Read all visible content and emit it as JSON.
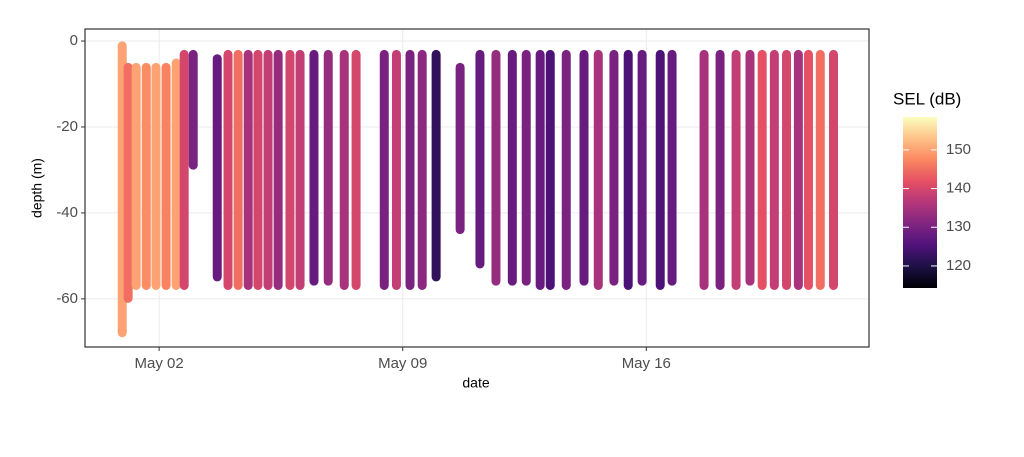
{
  "chart_data": {
    "type": "range",
    "x_label": "date",
    "y_label": "depth (m)",
    "x": [
      0.94,
      1.11,
      1.34,
      1.63,
      1.91,
      2.2,
      2.49,
      2.72,
      2.98,
      3.67,
      3.98,
      4.27,
      4.56,
      4.84,
      5.13,
      5.42,
      5.76,
      6.05,
      6.45,
      6.86,
      7.32,
      7.66,
      8.47,
      8.82,
      9.21,
      9.56,
      9.96,
      10.65,
      11.22,
      11.68,
      12.15,
      12.55,
      12.95,
      13.24,
      13.7,
      14.21,
      14.62,
      15.07,
      15.48,
      15.88,
      16.4,
      16.74,
      17.66,
      18.12,
      18.58,
      18.98,
      19.33,
      19.68,
      20.03,
      20.37,
      20.66,
      21.0,
      21.38
    ],
    "ymax": [
      -1,
      -6,
      -6,
      -6,
      -6,
      -6,
      -5,
      -3,
      -3,
      -4,
      -3,
      -3,
      -3,
      -3,
      -3,
      -3,
      -3,
      -3,
      -3,
      -3,
      -3,
      -3,
      -3,
      -3,
      -3,
      -3,
      -3,
      -6,
      -3,
      -3,
      -3,
      -3,
      -3,
      -3,
      -3,
      -3,
      -3,
      -3,
      -3,
      -3,
      -3,
      -3,
      -3,
      -3,
      -3,
      -3,
      -3,
      -3,
      -3,
      -3,
      -3,
      -3,
      -3
    ],
    "ymin": [
      -68,
      -60,
      -57,
      -57,
      -57,
      -57,
      -57,
      -57,
      -29,
      -55,
      -57,
      -57,
      -57,
      -57,
      -57,
      -57,
      -57,
      -57,
      -56,
      -56,
      -57,
      -57,
      -57,
      -57,
      -57,
      -57,
      -55,
      -44,
      -52,
      -56,
      -56,
      -56,
      -57,
      -57,
      -57,
      -56,
      -57,
      -56,
      -57,
      -56,
      -57,
      -56,
      -57,
      -57,
      -57,
      -56,
      -57,
      -57,
      -57,
      -57,
      -57,
      -57,
      -57
    ],
    "values": [
      150,
      145,
      150,
      148,
      150,
      147,
      150,
      140,
      130,
      128,
      140,
      145,
      135,
      140,
      138,
      133,
      140,
      138,
      128,
      133,
      135,
      140,
      130,
      138,
      130,
      132,
      122,
      130,
      128,
      133,
      128,
      130,
      128,
      125,
      130,
      128,
      135,
      130,
      125,
      128,
      125,
      128,
      135,
      130,
      138,
      135,
      142,
      138,
      140,
      135,
      142,
      145,
      140
    ],
    "xlim": [
      -0.13,
      22.4
    ],
    "xticks": [
      {
        "value": 2,
        "label": "May 02"
      },
      {
        "value": 9,
        "label": "May 09"
      },
      {
        "value": 16,
        "label": "May 16"
      }
    ],
    "ylim": [
      -71.2,
      2.8
    ],
    "yticks": [
      -60,
      -40,
      -20,
      0
    ],
    "grid": true,
    "colorbar": {
      "title": "SEL (dB)",
      "lim": [
        114.3,
        158.5
      ],
      "ticks": [
        120,
        130,
        140,
        150
      ],
      "colors": [
        "#000004",
        "#1c1044",
        "#4f127b",
        "#812581",
        "#b5367a",
        "#e55064",
        "#fb8761",
        "#fec287",
        "#fcfdbf"
      ]
    }
  }
}
